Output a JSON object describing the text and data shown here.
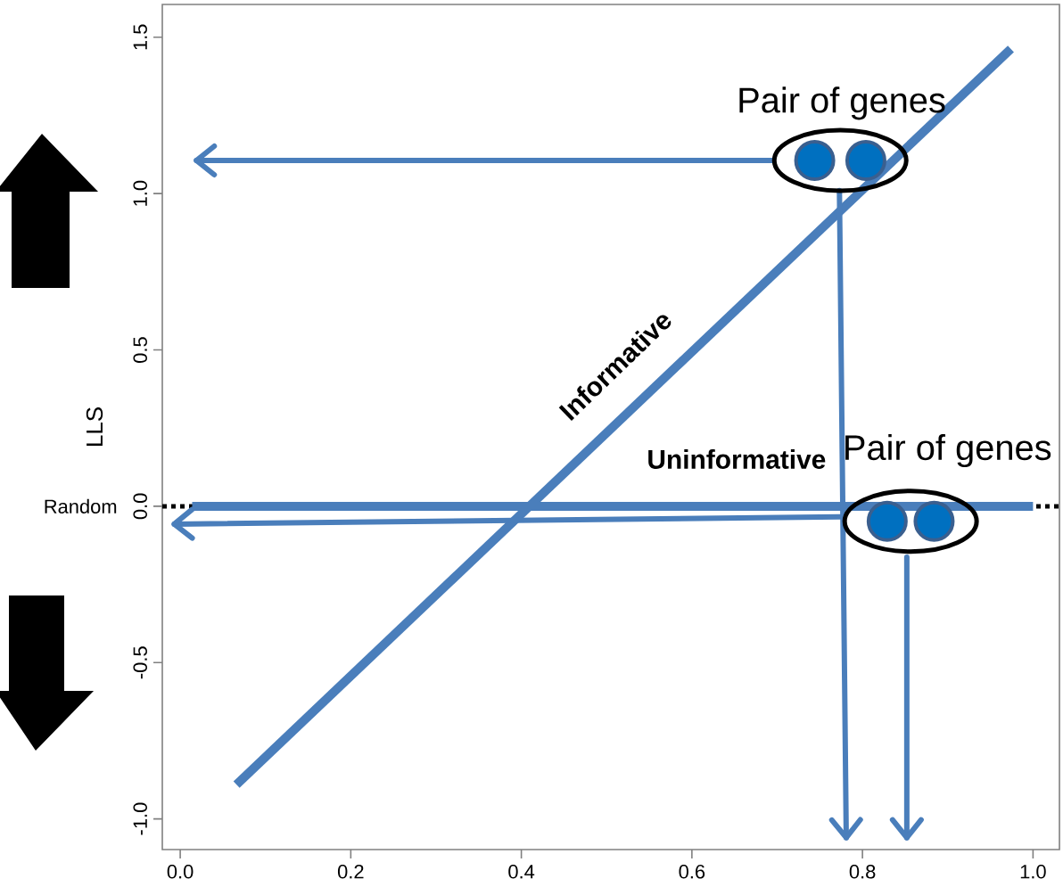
{
  "chart_data": {
    "type": "line",
    "ylabel": "LLS",
    "xlim": [
      -0.021,
      1.031
    ],
    "ylim": [
      -1.098,
      1.605
    ],
    "xticks": [
      {
        "value": 0,
        "label": "0.0"
      },
      {
        "value": 0.2,
        "label": "0.2"
      },
      {
        "value": 0.4,
        "label": "0.4"
      },
      {
        "value": 0.6,
        "label": "0.6"
      },
      {
        "value": 0.8,
        "label": "0.8"
      },
      {
        "value": 1,
        "label": "1.0"
      }
    ],
    "yticks": [
      {
        "value": -1,
        "label": "-1.0"
      },
      {
        "value": -0.5,
        "label": "-0.5"
      },
      {
        "value": 0,
        "label": "0.0"
      },
      {
        "value": 0.5,
        "label": "0.5"
      },
      {
        "value": 1,
        "label": "1.0"
      },
      {
        "value": 1.5,
        "label": "1.5"
      }
    ],
    "series": [
      {
        "color": "#4a7ebb",
        "x": [
          0.066,
          0.974
        ],
        "values": [
          -0.89,
          1.463
        ]
      },
      {
        "color": "#4a7ebb",
        "x": [
          0.014,
          1.0
        ],
        "values": [
          0,
          0
        ]
      },
      {
        "color": "#4a7ebb",
        "x": [
          0.694,
          0.019
        ],
        "values": [
          1.106,
          1.106
        ]
      },
      {
        "color": "#4a7ebb",
        "x": [
          0.773,
          0.781
        ],
        "values": [
          1.01,
          -1.06
        ]
      },
      {
        "color": "#4a7ebb",
        "x": [
          0.774,
          -0.007
        ],
        "values": [
          -0.034,
          -0.057
        ]
      },
      {
        "color": "#4a7ebb",
        "x": [
          0.852,
          0.852
        ],
        "values": [
          -0.163,
          -1.06
        ]
      },
      {
        "type": "scatter",
        "color": "#0070c0",
        "marker": "circle",
        "x": [
          0.744,
          0.804,
          0.829,
          0.884
        ],
        "values": [
          1.106,
          1.106,
          -0.048,
          -0.048
        ]
      }
    ],
    "ref_lines": [
      {
        "axis": "y",
        "value": 0,
        "label": "Random",
        "color": "#000000",
        "line_style": "dotted"
      }
    ],
    "annotations": [
      "Pair of genes",
      "Pair of genes",
      "Informative",
      "Uninformative"
    ]
  }
}
